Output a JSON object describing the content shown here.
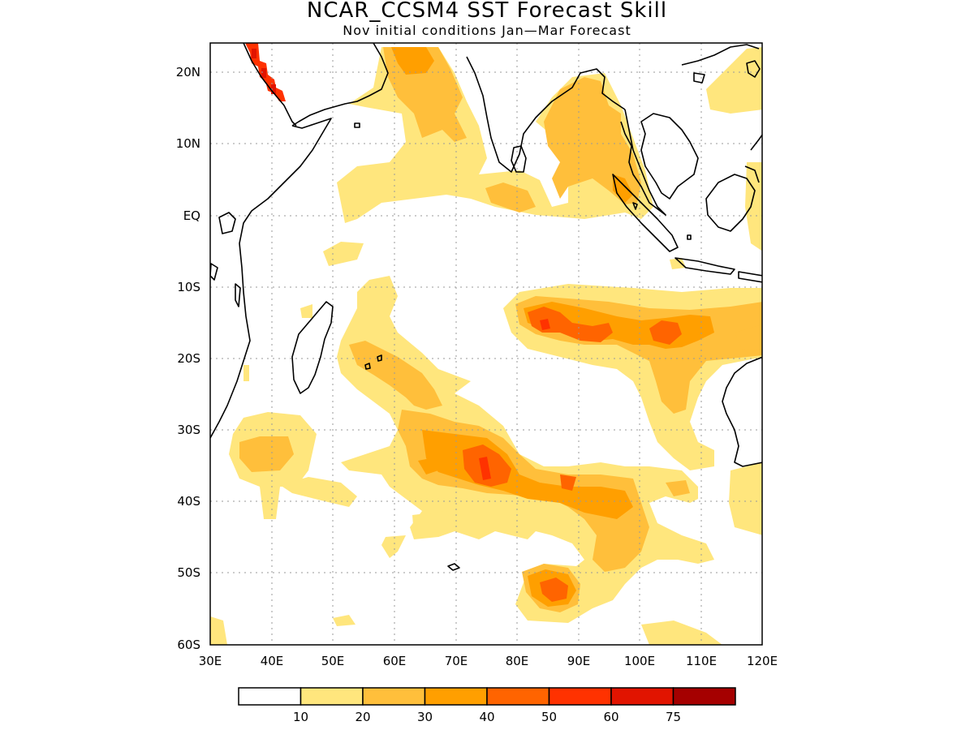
{
  "header": {
    "title": "NCAR_CCSM4 SST Forecast Skill",
    "subtitle": "Nov initial conditions  Jan—Mar Forecast"
  },
  "map": {
    "lon_range": [
      30,
      120
    ],
    "lat_range": [
      -60,
      24
    ],
    "lon_ticks": [
      "30E",
      "40E",
      "50E",
      "60E",
      "70E",
      "80E",
      "90E",
      "100E",
      "110E",
      "120E"
    ],
    "lat_ticks": [
      "20N",
      "10N",
      "EQ",
      "10S",
      "20S",
      "30S",
      "40S",
      "50S",
      "60S"
    ],
    "grid": "dotted",
    "region": "Indian Ocean"
  },
  "colorbar": {
    "labels": [
      "10",
      "20",
      "30",
      "40",
      "50",
      "60",
      "75"
    ],
    "colors": [
      "#ffffff",
      "#ffe67d",
      "#ffbf3b",
      "#ff9f00",
      "#ff6400",
      "#ff3200",
      "#e11400",
      "#a50000"
    ]
  }
}
